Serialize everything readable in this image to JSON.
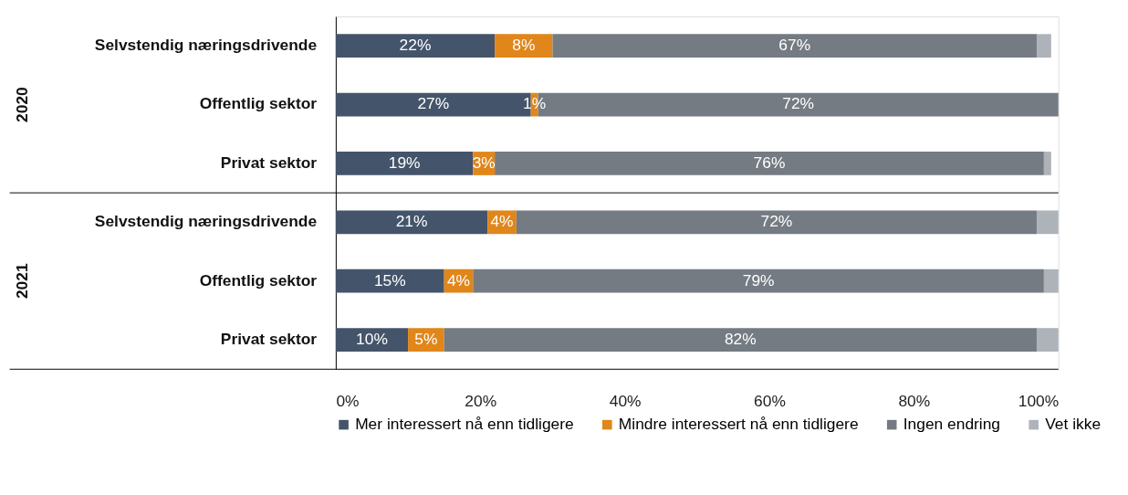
{
  "chart_data": {
    "type": "bar",
    "orientation": "horizontal",
    "stacked": true,
    "categories": [
      "Selvstendig næringsdrivende",
      "Offentlig sektor",
      "Privat sektor",
      "Selvstendig næringsdrivende",
      "Offentlig sektor",
      "Privat sektor"
    ],
    "annotations": [
      "2020",
      "2021"
    ],
    "series": [
      {
        "name": "Mer interessert nå enn tidligere",
        "color": "#44546a",
        "values": [
          22,
          27,
          19,
          21,
          15,
          10
        ],
        "value_labels": [
          "22%",
          "27%",
          "19%",
          "21%",
          "15%",
          "10%"
        ]
      },
      {
        "name": "Mindre interessert nå enn tidligere",
        "color": "#e0861a",
        "values": [
          8,
          1,
          3,
          4,
          4,
          5
        ],
        "value_labels": [
          "8%",
          "1%",
          "3%",
          "4%",
          "4%",
          "5%"
        ]
      },
      {
        "name": "Ingen endring",
        "color": "#747b82",
        "values": [
          67,
          72,
          76,
          72,
          79,
          82
        ],
        "value_labels": [
          "67%",
          "72%",
          "76%",
          "72%",
          "79%",
          "82%"
        ]
      },
      {
        "name": "Vet ikke",
        "color": "#adb3b9",
        "values": [
          2,
          0,
          1,
          3,
          2,
          3
        ]
      }
    ],
    "xlim": [
      0,
      100
    ],
    "xticks": [
      {
        "value": 0,
        "label": "0%"
      },
      {
        "value": 20,
        "label": "20%"
      },
      {
        "value": 40,
        "label": "40%"
      },
      {
        "value": 60,
        "label": "60%"
      },
      {
        "value": 80,
        "label": "80%"
      },
      {
        "value": 100,
        "label": "100%"
      }
    ],
    "grid": false,
    "legend": "bottom"
  }
}
